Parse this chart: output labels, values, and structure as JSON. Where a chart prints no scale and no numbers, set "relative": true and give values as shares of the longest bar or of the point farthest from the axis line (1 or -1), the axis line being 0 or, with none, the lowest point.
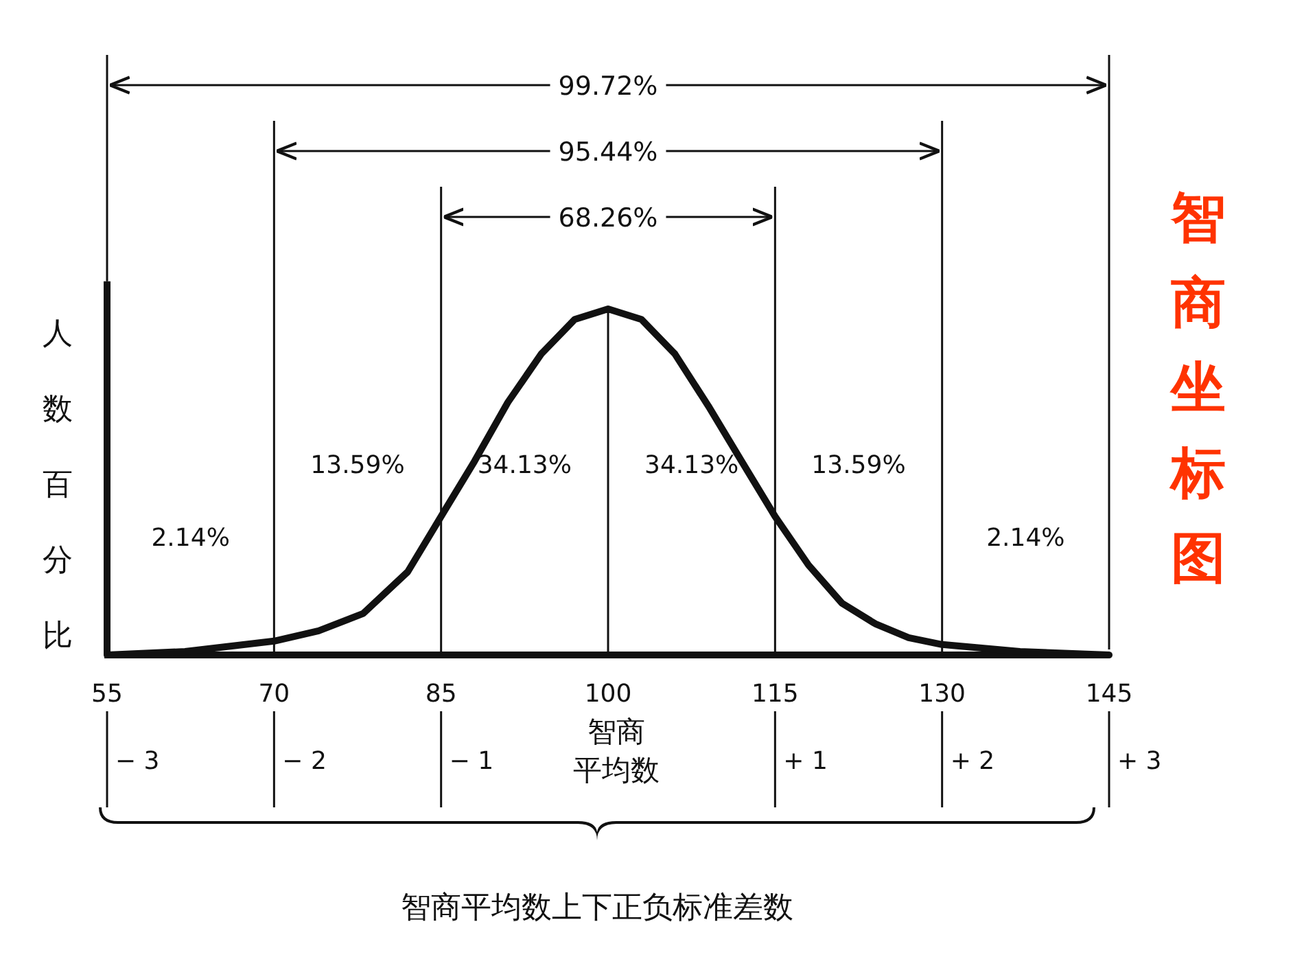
{
  "chart_data": {
    "type": "line",
    "relative": true,
    "title": "智商坐标图",
    "ylabel": "人数百分比",
    "x": [
      55,
      62,
      70,
      74,
      78,
      82,
      85,
      88,
      91,
      94,
      97,
      100,
      103,
      106,
      109,
      112,
      115,
      118,
      121,
      124,
      127,
      130,
      137,
      145
    ],
    "series": [
      {
        "color": "#111111",
        "values": [
          0,
          0.01,
          0.04,
          0.07,
          0.12,
          0.24,
          0.4,
          0.56,
          0.73,
          0.87,
          0.97,
          1,
          0.97,
          0.87,
          0.72,
          0.56,
          0.4,
          0.26,
          0.15,
          0.09,
          0.05,
          0.03,
          0.01,
          0
        ]
      }
    ],
    "xlim": [
      55,
      145
    ],
    "xticks": [
      55,
      70,
      85,
      100,
      115,
      130,
      145
    ],
    "ref_lines": [
      {
        "axis": "x",
        "value": 70
      },
      {
        "axis": "x",
        "value": 85
      },
      {
        "axis": "x",
        "value": 100
      },
      {
        "axis": "x",
        "value": 115
      },
      {
        "axis": "x",
        "value": 130
      }
    ],
    "annotations": [
      "2.14%",
      "13.59%",
      "34.13%",
      "34.13%",
      "13.59%",
      "2.14%",
      "− 3",
      "− 2",
      "− 1",
      "智商",
      "平均数",
      "+ 1",
      "+ 2",
      "+ 3",
      "99.72%",
      "95.44%",
      "68.26%",
      "智商平均数上下正负标准差数"
    ],
    "grid": false,
    "marker": "none",
    "line_style": "solid"
  }
}
